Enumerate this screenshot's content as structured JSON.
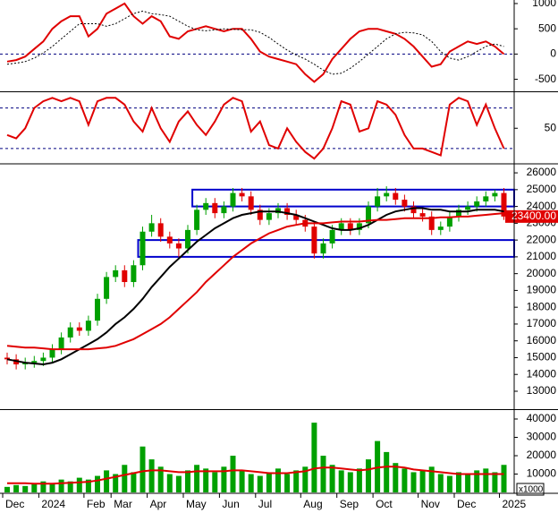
{
  "chart_data": [
    {
      "type": "line",
      "ylim": [
        -720,
        1070
      ],
      "yticks": [
        -500,
        0,
        500,
        1000
      ],
      "levels": [
        0
      ],
      "series": [
        {
          "color": "#e00000",
          "values": [
            -150,
            -120,
            -50,
            100,
            250,
            500,
            650,
            750,
            750,
            350,
            500,
            800,
            900,
            1000,
            750,
            600,
            750,
            650,
            350,
            300,
            450,
            500,
            550,
            500,
            450,
            500,
            500,
            300,
            50,
            -50,
            -100,
            -150,
            -200,
            -400,
            -550,
            -400,
            -100,
            100,
            300,
            450,
            500,
            500,
            450,
            400,
            300,
            150,
            -50,
            -250,
            -200,
            50,
            150,
            250,
            200,
            250,
            150,
            0
          ]
        },
        {
          "color": "#000000",
          "dash": "dotted",
          "values": [
            -200,
            -180,
            -150,
            -80,
            20,
            150,
            300,
            450,
            600,
            600,
            600,
            550,
            600,
            700,
            800,
            850,
            800,
            780,
            750,
            650,
            550,
            480,
            460,
            480,
            500,
            490,
            480,
            480,
            430,
            330,
            200,
            80,
            -20,
            -100,
            -200,
            -320,
            -400,
            -380,
            -280,
            -150,
            0,
            150,
            300,
            400,
            430,
            420,
            380,
            250,
            50,
            -80,
            -120,
            -50,
            50,
            150,
            200,
            150
          ]
        }
      ]
    },
    {
      "type": "line",
      "ylim": [
        0,
        102
      ],
      "yticks": [
        50
      ],
      "levels": [
        20,
        80
      ],
      "series": [
        {
          "color": "#e00000",
          "values": [
            40,
            35,
            50,
            80,
            90,
            95,
            90,
            95,
            90,
            55,
            90,
            95,
            95,
            85,
            60,
            45,
            80,
            50,
            30,
            60,
            75,
            55,
            40,
            60,
            85,
            95,
            90,
            45,
            60,
            25,
            20,
            50,
            30,
            15,
            5,
            20,
            50,
            90,
            85,
            45,
            50,
            90,
            85,
            70,
            40,
            20,
            20,
            15,
            10,
            85,
            95,
            90,
            55,
            85,
            50,
            20
          ]
        }
      ]
    },
    {
      "type": "candlestick",
      "ylim": [
        12040,
        26430
      ],
      "yticks": [
        13000,
        14000,
        15000,
        16000,
        17000,
        18000,
        19000,
        20000,
        21000,
        22000,
        23000,
        24000,
        25000,
        26000
      ],
      "up_color": "#00a000",
      "down_color": "#e00000",
      "open": [
        15000,
        14900,
        14600,
        14700,
        14800,
        15000,
        15500,
        16200,
        16800,
        16600,
        17200,
        18500,
        19800,
        20200,
        19500,
        20500,
        22500,
        23000,
        22200,
        21800,
        21500,
        22600,
        23800,
        24200,
        23600,
        24000,
        24800,
        24600,
        23800,
        23200,
        23600,
        23900,
        23500,
        23200,
        22800,
        21200,
        21800,
        22600,
        23000,
        22600,
        23000,
        24000,
        24600,
        24800,
        24400,
        24000,
        23600,
        23400,
        22600,
        22800,
        23400,
        23800,
        24000,
        24300,
        24600,
        24800
      ],
      "high": [
        15300,
        15200,
        15000,
        15100,
        15300,
        15800,
        16500,
        17100,
        17100,
        17500,
        18800,
        20100,
        20500,
        20500,
        20800,
        22800,
        23500,
        23300,
        22500,
        22100,
        22900,
        24100,
        24500,
        24500,
        24300,
        25100,
        25100,
        24900,
        24100,
        23900,
        24200,
        24200,
        23800,
        23500,
        23100,
        22100,
        22900,
        23300,
        23300,
        23300,
        24300,
        25100,
        25200,
        25100,
        24700,
        24300,
        23900,
        23700,
        23100,
        23700,
        24100,
        24300,
        24600,
        24900,
        25000,
        25100
      ],
      "low": [
        14600,
        14300,
        14300,
        14400,
        14500,
        14700,
        15200,
        15900,
        16300,
        16300,
        16900,
        18200,
        19500,
        19200,
        19200,
        20200,
        22200,
        21900,
        21500,
        21000,
        21200,
        22300,
        23500,
        23300,
        23300,
        23700,
        24300,
        23500,
        22900,
        22900,
        23300,
        23200,
        22900,
        22500,
        20900,
        20900,
        21500,
        22300,
        22300,
        22300,
        22700,
        23700,
        24300,
        24100,
        23700,
        23300,
        23100,
        22300,
        22300,
        22500,
        23100,
        23500,
        23700,
        24000,
        24300,
        23200
      ],
      "close": [
        14900,
        14600,
        14700,
        14800,
        15000,
        15500,
        16200,
        16800,
        16600,
        17200,
        18500,
        19800,
        20200,
        19500,
        20500,
        22500,
        23000,
        22200,
        21800,
        21500,
        22600,
        23800,
        24200,
        23600,
        24000,
        24800,
        24600,
        23800,
        23200,
        23600,
        23900,
        23500,
        23200,
        22800,
        21200,
        21800,
        22600,
        23000,
        22600,
        23000,
        24000,
        24600,
        24800,
        24400,
        24000,
        23600,
        23400,
        22600,
        22800,
        23400,
        23800,
        24000,
        24300,
        24600,
        24800,
        23400
      ],
      "overlays": [
        {
          "color": "#000000",
          "values": [
            14900,
            14800,
            14700,
            14650,
            14600,
            14700,
            14900,
            15200,
            15500,
            15800,
            16100,
            16500,
            17000,
            17400,
            17900,
            18500,
            19200,
            19800,
            20400,
            20900,
            21400,
            21900,
            22300,
            22700,
            23000,
            23300,
            23500,
            23600,
            23700,
            23700,
            23700,
            23600,
            23500,
            23300,
            23100,
            22900,
            22700,
            22600,
            22600,
            22700,
            22900,
            23200,
            23500,
            23700,
            23800,
            23900,
            23900,
            23800,
            23800,
            23700,
            23700,
            23700,
            23800,
            23800,
            23800,
            23700
          ]
        },
        {
          "color": "#e00000",
          "values": [
            15700,
            15650,
            15600,
            15600,
            15550,
            15500,
            15500,
            15500,
            15500,
            15500,
            15550,
            15600,
            15700,
            15900,
            16100,
            16400,
            16700,
            17000,
            17400,
            17900,
            18400,
            18900,
            19500,
            20000,
            20500,
            21000,
            21400,
            21800,
            22100,
            22400,
            22600,
            22800,
            22900,
            23000,
            23000,
            23000,
            23050,
            23100,
            23100,
            23100,
            23150,
            23200,
            23200,
            23250,
            23300,
            23300,
            23300,
            23300,
            23350,
            23350,
            23400,
            23400,
            23450,
            23500,
            23550,
            23600
          ]
        }
      ],
      "zones": [
        {
          "from": 21,
          "low": 24000,
          "high": 25000,
          "color": "#0000cc"
        },
        {
          "from": 15,
          "low": 21000,
          "high": 22000,
          "color": "#0000cc"
        }
      ],
      "last_price": {
        "value": 23400,
        "label": "23400.00"
      }
    },
    {
      "type": "bar",
      "ylim": [
        0,
        43900
      ],
      "yticks": [
        10000,
        20000,
        30000,
        40000
      ],
      "unit_label": "x1000",
      "color": "#00a000",
      "categories": [
        "Dec",
        null,
        null,
        null,
        "2024",
        null,
        null,
        null,
        null,
        "Feb",
        null,
        null,
        "Mar",
        null,
        null,
        null,
        "Apr",
        null,
        null,
        null,
        "May",
        null,
        null,
        null,
        "Jun",
        null,
        null,
        null,
        "Jul",
        null,
        null,
        null,
        null,
        "Aug",
        null,
        null,
        null,
        "Sep",
        null,
        null,
        null,
        "Oct",
        null,
        null,
        null,
        null,
        "Nov",
        null,
        null,
        null,
        "Dec",
        null,
        null,
        null,
        null,
        "2025"
      ],
      "values": [
        3000,
        4000,
        3500,
        5000,
        6000,
        5000,
        7000,
        6000,
        8000,
        7000,
        9000,
        12000,
        10000,
        15000,
        11000,
        25000,
        18000,
        14000,
        10000,
        9000,
        12000,
        15000,
        13000,
        11000,
        14000,
        20000,
        12000,
        10000,
        9000,
        11000,
        13000,
        10000,
        12000,
        14000,
        38000,
        20000,
        15000,
        12000,
        11000,
        13000,
        18000,
        28000,
        22000,
        16000,
        13000,
        11000,
        12000,
        14000,
        10000,
        9000,
        11000,
        10000,
        12000,
        13000,
        11000,
        15000
      ],
      "average": {
        "color": "#e00000",
        "values": [
          5000,
          5000,
          5000,
          4800,
          4800,
          4800,
          5000,
          5200,
          5500,
          5800,
          6500,
          7500,
          8500,
          9500,
          10500,
          11500,
          12000,
          12000,
          11500,
          11000,
          11000,
          11500,
          11500,
          11500,
          11500,
          12000,
          12000,
          11500,
          11000,
          10500,
          10500,
          10500,
          11000,
          11500,
          13000,
          13500,
          13500,
          13000,
          12500,
          12000,
          12500,
          13500,
          14000,
          14000,
          13500,
          12500,
          12000,
          11500,
          11000,
          10500,
          10000,
          10000,
          10000,
          10000,
          10000,
          10000
        ]
      }
    }
  ]
}
